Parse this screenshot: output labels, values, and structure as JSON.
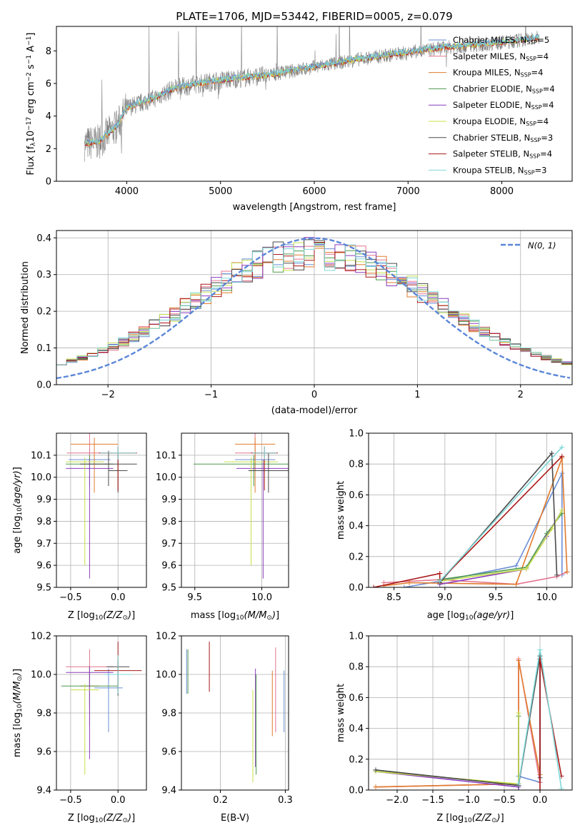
{
  "colors": {
    "chabrier_miles": "#6b8fd6",
    "salpeter_miles": "#e4748e",
    "kroupa_miles": "#e07b2e",
    "chabrier_elodie": "#4f9a4f",
    "salpeter_elodie": "#8c3fbf",
    "kroupa_elodie": "#c5e04a",
    "chabrier_stelib": "#4a4a4a",
    "salpeter_stelib": "#aa1818",
    "kroupa_stelib": "#7fd8d8",
    "data": "#808080",
    "normal": "#5b86d8"
  },
  "chart_data": [
    {
      "id": "spectrum",
      "type": "line",
      "title": "PLATE=1706, MJD=53442, FIBERID=0005, z=0.079",
      "xlabel": "wavelength [Angstrom, rest frame]",
      "ylabel": "Flux [f",
      "ylabel_parts": [
        "Flux [f",
        "λ",
        "10",
        "−17",
        " erg cm",
        "−2",
        " s",
        "−1",
        " A",
        "−1",
        "]"
      ],
      "xlim": [
        3250,
        8750
      ],
      "ylim": [
        0,
        9.5
      ],
      "xticks": [
        4000,
        5000,
        6000,
        7000,
        8000
      ],
      "yticks": [
        0,
        2,
        4,
        6,
        8
      ],
      "legend_position": "upper right",
      "legend": [
        {
          "name": "Chabrier MILES, N",
          "sub": "SSP",
          "n": "=5"
        },
        {
          "name": "Salpeter MILES, N",
          "sub": "SSP",
          "n": "=4"
        },
        {
          "name": "Kroupa MILES, N",
          "sub": "SSP",
          "n": "=4"
        },
        {
          "name": "Chabrier ELODIE, N",
          "sub": "SSP",
          "n": "=4"
        },
        {
          "name": "Salpeter ELODIE, N",
          "sub": "SSP",
          "n": "=4"
        },
        {
          "name": "Kroupa ELODIE, N",
          "sub": "SSP",
          "n": "=4"
        },
        {
          "name": "Chabrier STELIB, N",
          "sub": "SSP",
          "n": "=3"
        },
        {
          "name": "Salpeter STELIB, N",
          "sub": "SSP",
          "n": "=4"
        },
        {
          "name": "Kroupa STELIB, N",
          "sub": "SSP",
          "n": "=3"
        }
      ],
      "continuum_x": [
        3550,
        3700,
        3900,
        4000,
        4300,
        4500,
        5000,
        5500,
        6000,
        6500,
        7000,
        7400,
        8000,
        8400
      ],
      "continuum_y": [
        2.3,
        2.4,
        3.4,
        4.5,
        5.1,
        5.7,
        6.2,
        6.5,
        7.0,
        7.5,
        7.9,
        8.2,
        8.5,
        8.8
      ]
    },
    {
      "id": "residuals",
      "type": "step",
      "xlabel": "(data-model)/error",
      "ylabel": "Normed distribution",
      "xlim": [
        -2.5,
        2.5
      ],
      "ylim": [
        0,
        0.42
      ],
      "xticks": [
        -2,
        -1,
        0,
        1,
        2
      ],
      "yticks": [
        0.0,
        0.1,
        0.2,
        0.3,
        0.4
      ],
      "legend_position": "upper right",
      "normal_label": "N(0, 1)",
      "bin_width": 0.1
    },
    {
      "id": "age_vs_Z",
      "type": "errorbar",
      "xlabel": "Z [log",
      "ylabel": "age",
      "xlim": [
        -0.65,
        0.3
      ],
      "ylim": [
        9.5,
        10.2
      ],
      "xticks": [
        -0.5,
        0.0
      ],
      "yticks": [
        9.5,
        9.6,
        9.7,
        9.8,
        9.9,
        10.0,
        10.1
      ],
      "points": [
        {
          "x": -0.3,
          "y": 10.08,
          "xe": 0.22,
          "ye": [
            0.05,
            0.05
          ],
          "c": "chabrier_miles"
        },
        {
          "x": -0.3,
          "y": 10.11,
          "xe": 0.24,
          "ye": [
            0.05,
            0.16
          ],
          "c": "salpeter_miles"
        },
        {
          "x": -0.25,
          "y": 10.15,
          "xe": 0.25,
          "ye": [
            0.22,
            0.03
          ],
          "c": "kroupa_miles"
        },
        {
          "x": -0.3,
          "y": 10.06,
          "xe": 0.25,
          "ye": [
            0.1,
            0.04
          ],
          "c": "chabrier_elodie"
        },
        {
          "x": -0.3,
          "y": 10.04,
          "xe": 0.25,
          "ye": [
            0.5,
            0.04
          ],
          "c": "salpeter_elodie"
        },
        {
          "x": -0.35,
          "y": 10.07,
          "xe": 0.2,
          "ye": [
            0.47,
            0.02
          ],
          "c": "kroupa_elodie"
        },
        {
          "x": -0.1,
          "y": 10.06,
          "xe": 0.3,
          "ye": [
            0.1,
            0.06
          ],
          "c": "chabrier_stelib"
        },
        {
          "x": 0.0,
          "y": 10.03,
          "xe": 0.1,
          "ye": [
            0.1,
            0.08
          ],
          "c": "chabrier_stelib"
        },
        {
          "x": 0.0,
          "y": 10.11,
          "xe": 0.2,
          "ye": [
            0.17,
            0.03
          ],
          "c": "salpeter_stelib"
        },
        {
          "x": 0.0,
          "y": 10.11,
          "xe": 0.19,
          "ye": [
            0.03,
            0.03
          ],
          "c": "kroupa_stelib"
        }
      ]
    },
    {
      "id": "age_vs_mass",
      "type": "errorbar",
      "xlabel": "mass [log",
      "ylabel": "",
      "xlim": [
        9.4,
        10.2
      ],
      "ylim": [
        9.5,
        10.2
      ],
      "xticks": [
        9.5,
        10.0
      ],
      "yticks": [
        9.5,
        9.6,
        9.7,
        9.8,
        9.9,
        10.0,
        10.1
      ],
      "points": [
        {
          "x": 9.95,
          "y": 10.08,
          "xe": 0.15,
          "ye": [
            0.05,
            0.05
          ],
          "c": "chabrier_miles"
        },
        {
          "x": 9.95,
          "y": 10.11,
          "xe": 0.15,
          "ye": [
            0.05,
            0.16
          ],
          "c": "salpeter_miles"
        },
        {
          "x": 9.95,
          "y": 10.15,
          "xe": 0.15,
          "ye": [
            0.22,
            0.03
          ],
          "c": "kroupa_miles"
        },
        {
          "x": 9.94,
          "y": 10.06,
          "xe": 0.45,
          "ye": [
            0.1,
            0.04
          ],
          "c": "chabrier_elodie"
        },
        {
          "x": 10.01,
          "y": 10.04,
          "xe": 0.2,
          "ye": [
            0.5,
            0.04
          ],
          "c": "salpeter_elodie"
        },
        {
          "x": 9.92,
          "y": 10.07,
          "xe": 0.2,
          "ye": [
            0.47,
            0.02
          ],
          "c": "kroupa_elodie"
        },
        {
          "x": 10.05,
          "y": 10.03,
          "xe": 0.15,
          "ye": [
            0.1,
            0.08
          ],
          "c": "chabrier_stelib"
        },
        {
          "x": 10.02,
          "y": 10.11,
          "xe": 0.1,
          "ye": [
            0.17,
            0.03
          ],
          "c": "salpeter_stelib"
        },
        {
          "x": 10.02,
          "y": 10.11,
          "xe": 0.09,
          "ye": [
            0.03,
            0.03
          ],
          "c": "kroupa_stelib"
        }
      ]
    },
    {
      "id": "weight_vs_age",
      "type": "line",
      "xlabel": "age",
      "ylabel": "mass weight",
      "xlim": [
        8.25,
        10.25
      ],
      "ylim": [
        0,
        1.0
      ],
      "xticks": [
        8.5,
        9.0,
        9.5,
        10.0
      ],
      "yticks": [
        0.0,
        0.2,
        0.4,
        0.6,
        0.8,
        1.0
      ],
      "series": [
        {
          "c": "chabrier_miles",
          "x": [
            8.6,
            8.95,
            9.7,
            10.15,
            10.15
          ],
          "y": [
            0.0,
            0.04,
            0.14,
            0.74,
            0.08
          ]
        },
        {
          "c": "salpeter_miles",
          "x": [
            8.4,
            8.95,
            9.7,
            10.1,
            10.2
          ],
          "y": [
            0.03,
            0.05,
            0.02,
            0.07,
            0.1
          ]
        },
        {
          "c": "kroupa_miles",
          "x": [
            8.4,
            8.65,
            9.7,
            10.15,
            10.2
          ],
          "y": [
            0.01,
            0.03,
            0.02,
            0.84,
            0.1
          ]
        },
        {
          "c": "chabrier_elodie",
          "x": [
            8.95,
            9.8,
            10.0,
            10.15
          ],
          "y": [
            0.05,
            0.13,
            0.35,
            0.48
          ]
        },
        {
          "c": "salpeter_elodie",
          "x": [
            8.95,
            9.8,
            10.0,
            10.15
          ],
          "y": [
            0.02,
            0.12,
            0.33,
            0.5
          ]
        },
        {
          "c": "kroupa_elodie",
          "x": [
            8.95,
            9.8,
            10.05,
            10.15
          ],
          "y": [
            0.04,
            0.12,
            0.38,
            0.5
          ]
        },
        {
          "c": "chabrier_stelib",
          "x": [
            8.95,
            10.05,
            10.1
          ],
          "y": [
            0.03,
            0.87,
            0.08
          ]
        },
        {
          "c": "salpeter_stelib",
          "x": [
            8.3,
            8.95,
            8.95,
            10.15
          ],
          "y": [
            0.0,
            0.09,
            0.04,
            0.85
          ]
        },
        {
          "c": "kroupa_stelib",
          "x": [
            8.95,
            10.15
          ],
          "y": [
            0.04,
            0.91
          ]
        }
      ]
    },
    {
      "id": "mass_vs_Z",
      "type": "errorbar",
      "xlabel": "Z [log",
      "ylabel": "mass",
      "xlim": [
        -0.65,
        0.3
      ],
      "ylim": [
        9.4,
        10.2
      ],
      "xticks": [
        -0.5,
        0.0
      ],
      "yticks": [
        9.4,
        9.6,
        9.8,
        10.0,
        10.2
      ],
      "points": [
        {
          "x": -0.1,
          "y": 9.93,
          "xe": 0.15,
          "ye": [
            0.23,
            0.1
          ],
          "c": "chabrier_miles"
        },
        {
          "x": -0.3,
          "y": 10.04,
          "xe": 0.25,
          "ye": [
            0.22,
            0.09
          ],
          "c": "salpeter_miles"
        },
        {
          "x": -0.3,
          "y": 9.94,
          "xe": 0.1,
          "ye": [
            0.21,
            0.1
          ],
          "c": "kroupa_miles"
        },
        {
          "x": -0.3,
          "y": 9.94,
          "xe": 0.3,
          "ye": [
            0.1,
            0.1
          ],
          "c": "chabrier_elodie"
        },
        {
          "x": -0.3,
          "y": 10.01,
          "xe": 0.25,
          "ye": [
            0.45,
            0.03
          ],
          "c": "salpeter_elodie"
        },
        {
          "x": -0.35,
          "y": 9.92,
          "xe": 0.15,
          "ye": [
            0.44,
            0.03
          ],
          "c": "kroupa_elodie"
        },
        {
          "x": 0.0,
          "y": 10.04,
          "xe": 0.12,
          "ye": [
            0.15,
            0.03
          ],
          "c": "chabrier_stelib"
        },
        {
          "x": 0.0,
          "y": 10.02,
          "xe": 0.25,
          "ye": [
            0.1,
            0.15
          ],
          "c": "salpeter_stelib"
        },
        {
          "x": 0.0,
          "y": 10.0,
          "xe": 0.15,
          "ye": [
            0.1,
            0.1
          ],
          "c": "kroupa_stelib"
        }
      ]
    },
    {
      "id": "mass_vs_ebv",
      "type": "errorbar",
      "xlabel": "E(B-V)",
      "ylabel": "",
      "xlim": [
        0.14,
        0.305
      ],
      "ylim": [
        9.4,
        10.2
      ],
      "xticks": [
        0.2,
        0.3
      ],
      "yticks": [
        9.4,
        9.6,
        9.8,
        10.0,
        10.2
      ],
      "points": [
        {
          "x": 0.148,
          "y": 10.0,
          "xe": 0,
          "ye": [
            0.1,
            0.13
          ],
          "c": "chabrier_miles"
        },
        {
          "x": 0.15,
          "y": 10.0,
          "xe": 0,
          "ye": [
            0.1,
            0.13
          ],
          "c": "chabrier_elodie"
        },
        {
          "x": 0.183,
          "y": 10.05,
          "xe": 0,
          "ye": [
            0.14,
            0.12
          ],
          "c": "salpeter_stelib"
        },
        {
          "x": 0.25,
          "y": 9.7,
          "xe": 0,
          "ye": [
            0.26,
            0.22
          ],
          "c": "kroupa_elodie"
        },
        {
          "x": 0.254,
          "y": 9.7,
          "xe": 0,
          "ye": [
            0.18,
            0.33
          ],
          "c": "salpeter_elodie"
        },
        {
          "x": 0.255,
          "y": 9.7,
          "xe": 0,
          "ye": [
            0.22,
            0.3
          ],
          "c": "chabrier_elodie"
        },
        {
          "x": 0.28,
          "y": 9.9,
          "xe": 0,
          "ye": [
            0.22,
            0.12
          ],
          "c": "kroupa_miles"
        },
        {
          "x": 0.285,
          "y": 9.9,
          "xe": 0,
          "ye": [
            0.2,
            0.24
          ],
          "c": "salpeter_miles"
        },
        {
          "x": 0.298,
          "y": 9.85,
          "xe": 0,
          "ye": [
            0.15,
            0.17
          ],
          "c": "chabrier_miles"
        }
      ]
    },
    {
      "id": "weight_vs_Z",
      "type": "line",
      "xlabel": "Z [log",
      "ylabel": "mass weight",
      "xlim": [
        -2.4,
        0.45
      ],
      "ylim": [
        0,
        1.0
      ],
      "xticks": [
        -2.0,
        -1.5,
        -1.0,
        -0.5,
        0.0
      ],
      "yticks": [
        0.0,
        0.2,
        0.4,
        0.6,
        0.8,
        1.0
      ],
      "series": [
        {
          "c": "chabrier_miles",
          "x": [
            -0.3,
            -0.3,
            0.0,
            0.0
          ],
          "y": [
            0.0,
            0.09,
            0.05,
            0.85
          ]
        },
        {
          "c": "salpeter_miles",
          "x": [
            -2.3,
            -0.3,
            -0.3,
            0.0
          ],
          "y": [
            0.02,
            0.04,
            0.85,
            0.05
          ]
        },
        {
          "c": "kroupa_miles",
          "x": [
            -2.3,
            -0.3,
            -0.3,
            0.0
          ],
          "y": [
            0.02,
            0.04,
            0.84,
            0.1
          ]
        },
        {
          "c": "chabrier_elodie",
          "x": [
            -2.3,
            -0.3,
            -0.3
          ],
          "y": [
            0.13,
            0.03,
            0.48
          ]
        },
        {
          "c": "salpeter_elodie",
          "x": [
            -2.3,
            -0.3,
            -0.3
          ],
          "y": [
            0.12,
            0.02,
            0.5
          ]
        },
        {
          "c": "kroupa_elodie",
          "x": [
            -2.3,
            -0.3,
            -0.3
          ],
          "y": [
            0.12,
            0.04,
            0.5
          ]
        },
        {
          "c": "chabrier_stelib",
          "x": [
            -2.3,
            -0.3,
            0.0,
            0.0
          ],
          "y": [
            0.13,
            0.03,
            0.87,
            0.08
          ]
        },
        {
          "c": "salpeter_stelib",
          "x": [
            0.0,
            0.0,
            0.3
          ],
          "y": [
            0.0,
            0.85,
            0.09
          ]
        },
        {
          "c": "kroupa_stelib",
          "x": [
            -0.3,
            0.0,
            0.3
          ],
          "y": [
            0.04,
            0.91,
            0.01
          ]
        }
      ]
    }
  ]
}
